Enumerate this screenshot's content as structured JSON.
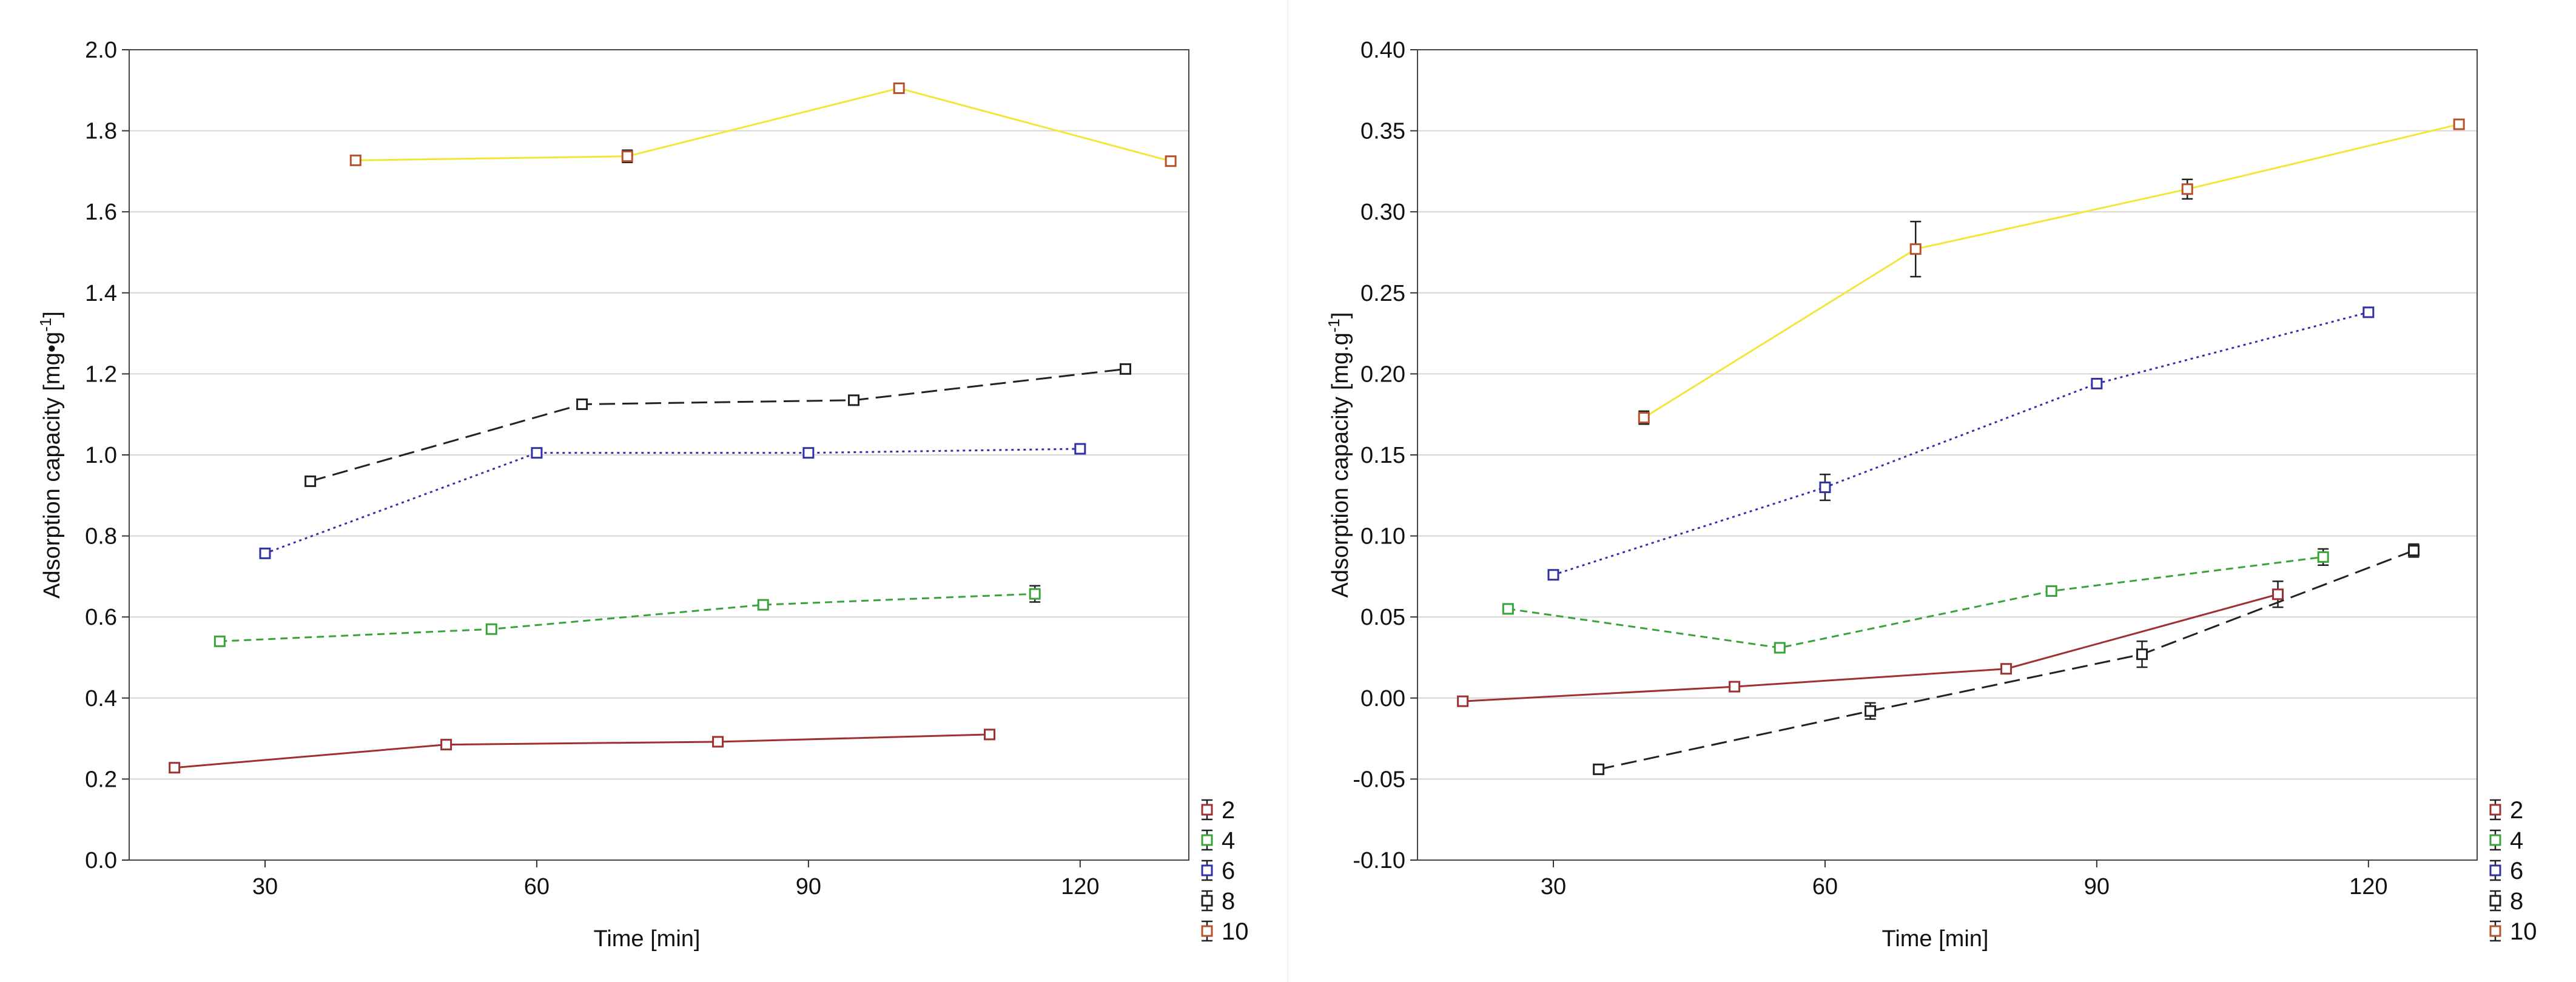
{
  "chart_data": [
    {
      "type": "line",
      "title": "",
      "xlabel": "Time [min]",
      "ylabel": "Adsorption capacity [mg•g",
      "ylabel_unit_sup": "-1",
      "ylabel_close": "]",
      "xlim": [
        15,
        132
      ],
      "ylim": [
        0,
        2.0
      ],
      "xticks": [
        30,
        60,
        90,
        120
      ],
      "xtick_labels": [
        "30",
        "60",
        "90",
        "120"
      ],
      "yticks": [
        0,
        0.2,
        0.4,
        0.6,
        0.8,
        1.0,
        1.2,
        1.4,
        1.6,
        1.8,
        2.0
      ],
      "ytick_labels": [
        "0.0",
        "0.2",
        "0.4",
        "0.6",
        "0.8",
        "1.0",
        "1.2",
        "1.4",
        "1.6",
        "1.8",
        "2.0"
      ],
      "grid": true,
      "legend_position": "bottom-right",
      "series": [
        {
          "name": "2",
          "color": "#a03030",
          "marker_color": "#a03030",
          "dash": "solid",
          "x": [
            20,
            50,
            80,
            110
          ],
          "y": [
            0.228,
            0.285,
            0.292,
            0.31
          ],
          "err": [
            0.005,
            0.008,
            0.005,
            0.007
          ]
        },
        {
          "name": "4",
          "color": "#3aa23a",
          "marker_color": "#3aa23a",
          "dash": "dash",
          "x": [
            25,
            55,
            85,
            115
          ],
          "y": [
            0.54,
            0.57,
            0.63,
            0.657
          ],
          "err": [
            0.008,
            0.005,
            0.006,
            0.02
          ]
        },
        {
          "name": "6",
          "color": "#3030a8",
          "marker_color": "#3030a8",
          "dash": "dot",
          "x": [
            30,
            60,
            90,
            120
          ],
          "y": [
            0.757,
            1.005,
            1.005,
            1.015
          ],
          "err": [
            0.006,
            0.007,
            0.006,
            0.008
          ]
        },
        {
          "name": "8",
          "color": "#222222",
          "marker_color": "#222222",
          "dash": "longdash",
          "x": [
            35,
            65,
            95,
            125
          ],
          "y": [
            0.935,
            1.125,
            1.135,
            1.212
          ],
          "err": [
            0.006,
            0.01,
            0.005,
            0.01
          ]
        },
        {
          "name": "10",
          "color": "#f2e63c",
          "marker_color": "#b5522c",
          "dash": "solid",
          "x": [
            40,
            70,
            100,
            130
          ],
          "y": [
            1.727,
            1.737,
            1.905,
            1.725
          ],
          "err": [
            0.005,
            0.015,
            0.01,
            0.01
          ]
        }
      ]
    },
    {
      "type": "line",
      "title": "",
      "xlabel": "Time [min]",
      "ylabel": "Adsorption capacity [mg.g",
      "ylabel_unit_sup": "-1",
      "ylabel_close": "]",
      "xlim": [
        15,
        132
      ],
      "ylim": [
        -0.1,
        0.4
      ],
      "xticks": [
        30,
        60,
        90,
        120
      ],
      "xtick_labels": [
        "30",
        "60",
        "90",
        "120"
      ],
      "yticks": [
        -0.1,
        -0.05,
        0.0,
        0.05,
        0.1,
        0.15,
        0.2,
        0.25,
        0.3,
        0.35,
        0.4
      ],
      "ytick_labels": [
        "-0.10",
        "-0.05",
        "0.00",
        "0.05",
        "0.10",
        "0.15",
        "0.20",
        "0.25",
        "0.30",
        "0.35",
        "0.40"
      ],
      "grid": true,
      "legend_position": "bottom-right",
      "series": [
        {
          "name": "2",
          "color": "#a03030",
          "marker_color": "#a03030",
          "dash": "solid",
          "x": [
            20,
            50,
            80,
            110
          ],
          "y": [
            -0.002,
            0.007,
            0.018,
            0.064
          ],
          "err": [
            0.002,
            0.002,
            0.002,
            0.008
          ]
        },
        {
          "name": "4",
          "color": "#3aa23a",
          "marker_color": "#3aa23a",
          "dash": "dash",
          "x": [
            25,
            55,
            85,
            115
          ],
          "y": [
            0.055,
            0.031,
            0.066,
            0.087
          ],
          "err": [
            0.002,
            0.002,
            0.002,
            0.005
          ]
        },
        {
          "name": "6",
          "color": "#3030a8",
          "marker_color": "#3030a8",
          "dash": "dot",
          "x": [
            30,
            60,
            90,
            120
          ],
          "y": [
            0.076,
            0.13,
            0.194,
            0.238
          ],
          "err": [
            0.002,
            0.008,
            0.002,
            0.002
          ]
        },
        {
          "name": "8",
          "color": "#222222",
          "marker_color": "#222222",
          "dash": "longdash",
          "x": [
            35,
            65,
            95,
            125
          ],
          "y": [
            -0.044,
            -0.008,
            0.027,
            0.091
          ],
          "err": [
            0.002,
            0.005,
            0.008,
            0.004
          ]
        },
        {
          "name": "10",
          "color": "#f2e63c",
          "marker_color": "#b5522c",
          "dash": "solid",
          "x": [
            40,
            70,
            100,
            130
          ],
          "y": [
            0.173,
            0.277,
            0.314,
            0.354
          ],
          "err": [
            0.004,
            0.017,
            0.006,
            0.002
          ]
        }
      ]
    }
  ]
}
